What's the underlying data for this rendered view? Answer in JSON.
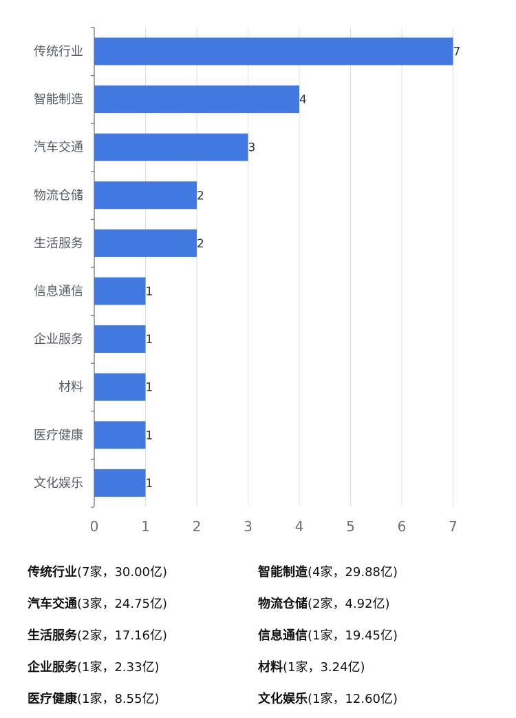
{
  "chart_data": {
    "type": "bar",
    "orientation": "horizontal",
    "categories": [
      "传统行业",
      "智能制造",
      "汽车交通",
      "物流仓储",
      "生活服务",
      "信息通信",
      "企业服务",
      "材料",
      "医疗健康",
      "文化娱乐"
    ],
    "values": [
      7,
      4,
      3,
      2,
      2,
      1,
      1,
      1,
      1,
      1
    ],
    "xlim": [
      0,
      7
    ],
    "x_ticks": [
      0,
      1,
      2,
      3,
      4,
      5,
      6,
      7
    ],
    "bar_color": "#4179E1",
    "grid": true,
    "data_labels": true
  },
  "summary": [
    {
      "name": "传统行业",
      "detail": "(7家，30.00亿)"
    },
    {
      "name": "智能制造",
      "detail": "(4家，29.88亿)"
    },
    {
      "name": "汽车交通",
      "detail": "(3家，24.75亿)"
    },
    {
      "name": "物流仓储",
      "detail": "(2家，4.92亿)"
    },
    {
      "name": "生活服务",
      "detail": "(2家，17.16亿)"
    },
    {
      "name": "信息通信",
      "detail": "(1家，19.45亿)"
    },
    {
      "name": "企业服务",
      "detail": "(1家，2.33亿)"
    },
    {
      "name": "材料",
      "detail": "(1家，3.24亿)"
    },
    {
      "name": "医疗健康",
      "detail": "(1家，8.55亿)"
    },
    {
      "name": "文化娱乐",
      "detail": "(1家，12.60亿)"
    }
  ]
}
